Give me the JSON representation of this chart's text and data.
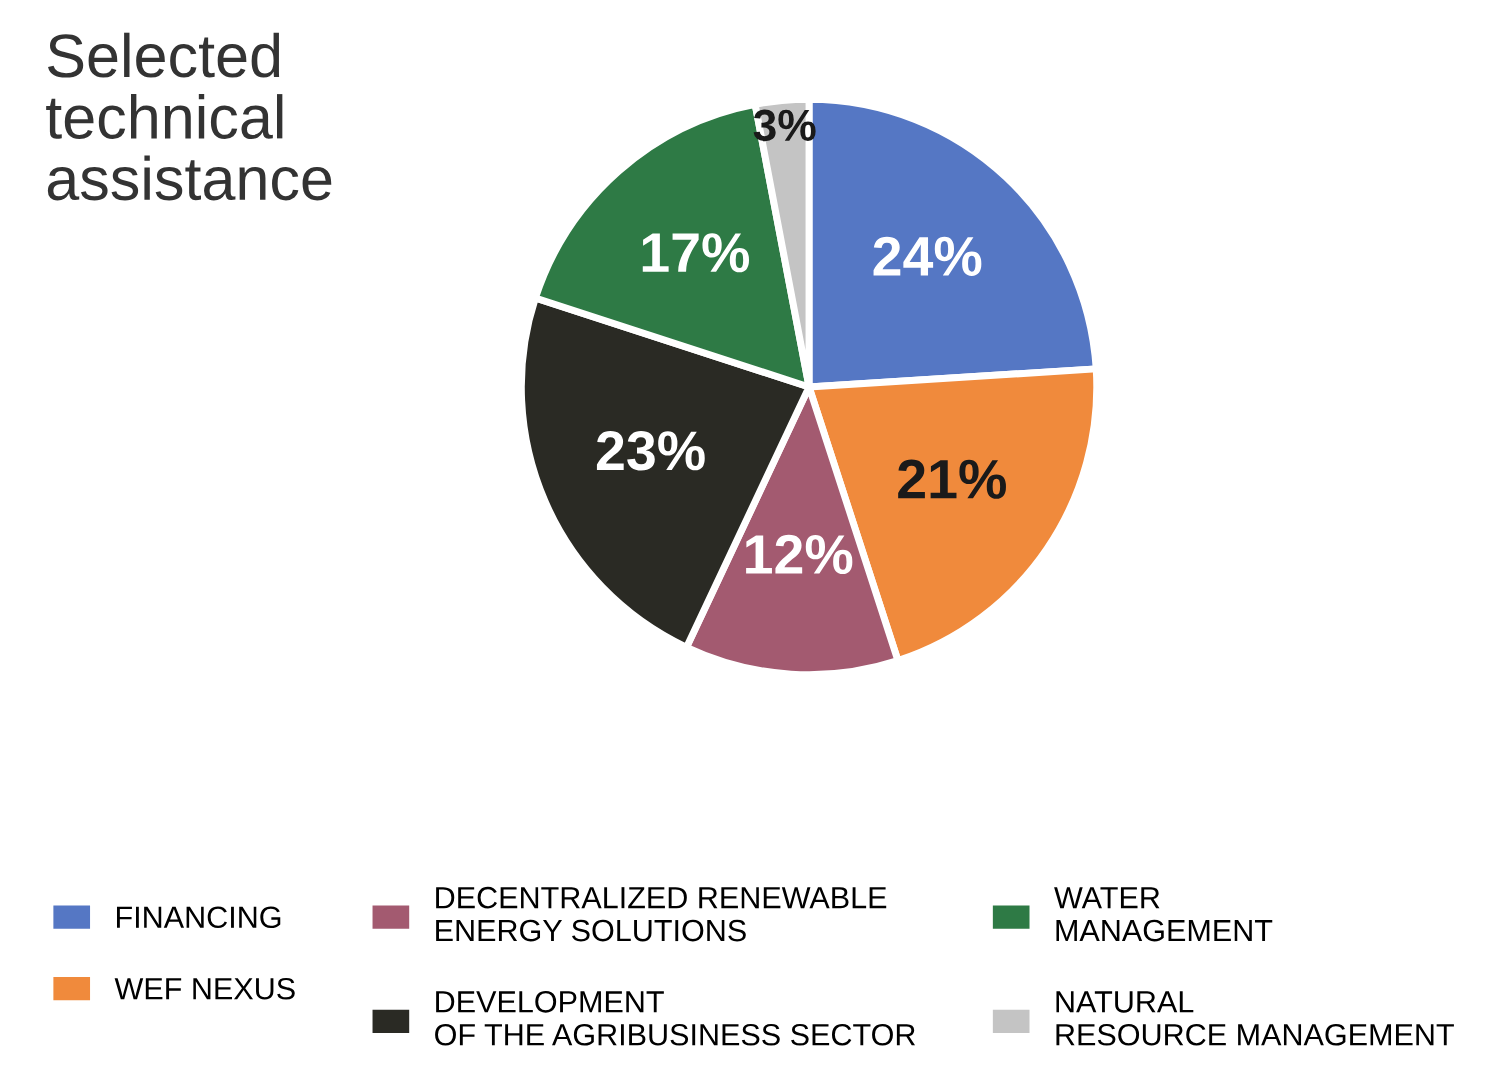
{
  "chart_data": {
    "type": "pie",
    "title": "Selected\ntechnical\nassistance",
    "categories": [
      "FINANCING",
      "WEF NEXUS",
      "DECENTRALIZED RENEWABLE\nENERGY SOLUTIONS",
      "DEVELOPMENT\nOF THE AGRIBUSINESS SECTOR",
      "WATER\nMANAGEMENT",
      "NATURAL\nRESOURCE MANAGEMENT"
    ],
    "values": [
      24,
      21,
      12,
      23,
      17,
      3
    ],
    "value_labels": [
      "24%",
      "21%",
      "12%",
      "23%",
      "17%",
      "3%"
    ],
    "colors": [
      "#5577c4",
      "#f08a3c",
      "#a35a70",
      "#2a2a24",
      "#2e7a45",
      "#c4c4c4"
    ],
    "legend": "bottom"
  }
}
